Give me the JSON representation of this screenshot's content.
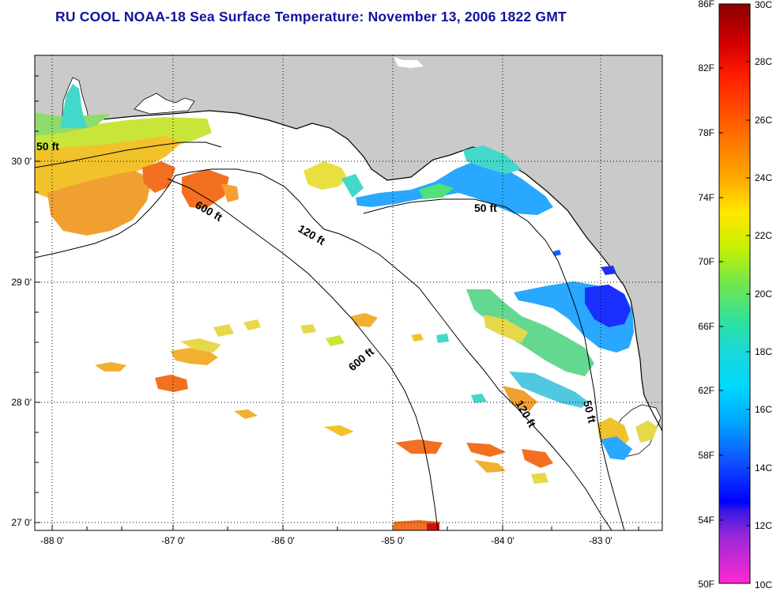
{
  "title": "RU COOL  NOAA-18  Sea Surface Temperature:  November 13, 2006 1822 GMT",
  "map": {
    "longitude_ticks": [
      "-88 0'",
      "-87 0'",
      "-86 0'",
      "-85 0'",
      "-84 0'",
      "-83 0'"
    ],
    "latitude_ticks": [
      "30 0'",
      "29 0'",
      "28 0'",
      "27 0'"
    ],
    "contours": [
      {
        "depth": "50 ft"
      },
      {
        "depth": "600 ft"
      },
      {
        "depth": "120 ft"
      },
      {
        "depth": "600 ft"
      },
      {
        "depth": "50 ft"
      },
      {
        "depth": "120 ft"
      },
      {
        "depth": "50 ft"
      }
    ]
  },
  "colorbar": {
    "fahrenheit_labels": [
      "86F",
      "82F",
      "78F",
      "74F",
      "70F",
      "66F",
      "62F",
      "58F",
      "54F",
      "50F"
    ],
    "celsius_labels": [
      "30C",
      "28C",
      "26C",
      "24C",
      "22C",
      "20C",
      "18C",
      "16C",
      "14C",
      "12C",
      "10C"
    ]
  },
  "colors": {
    "title": "#12129e",
    "land": "#cacaca",
    "water": "#ffffff"
  }
}
